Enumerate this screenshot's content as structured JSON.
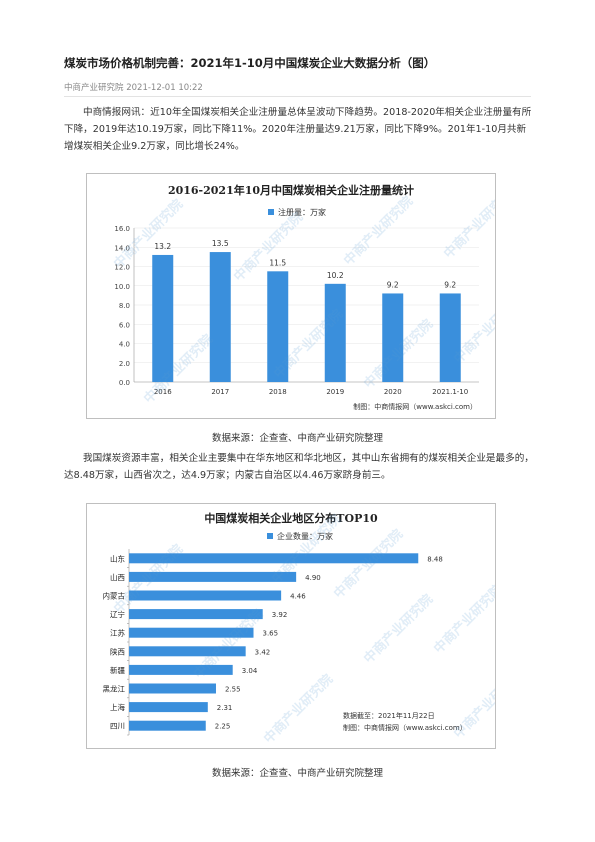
{
  "article": {
    "title": "煤炭市场价格机制完善：2021年1-10月中国煤炭企业大数据分析（图）",
    "source": "中商产业研究院",
    "date": "2021-12-01 10:22",
    "paragraph1": "中商情报网讯：近10年全国煤炭相关企业注册量总体呈波动下降趋势。2018-2020年相关企业注册量有所下降，2019年达10.19万家，同比下降11%。2020年注册量达9.21万家，同比下降9%。201年1-10月共新增煤炭相关企业9.2万家，同比增长24%。",
    "caption1": "数据来源：企查查、中商产业研究院整理",
    "paragraph2": "我国煤炭资源丰富，相关企业主要集中在华东地区和华北地区，其中山东省拥有的煤炭相关企业是最多的，达8.48万家，山西省次之，达4.9万家；内蒙古自治区以4.46万家跻身前三。",
    "caption2": "数据来源：企查查、中商产业研究院整理"
  },
  "watermark": "中商产业研究院",
  "chart_data": [
    {
      "type": "bar",
      "title": "2016-2021年10月中国煤炭相关企业注册量统计",
      "legend": "注册量：万家",
      "categories": [
        "2016",
        "2017",
        "2018",
        "2019",
        "2020",
        "2021.1-10"
      ],
      "values": [
        13.2,
        13.5,
        11.5,
        10.2,
        9.2,
        9.2
      ],
      "value_labels": [
        "13.2",
        "13.5",
        "11.5",
        "10.2",
        "9.2",
        "9.2"
      ],
      "ylim": [
        0,
        16
      ],
      "yticks": [
        "0.0",
        "2.0",
        "4.0",
        "6.0",
        "8.0",
        "10.0",
        "12.0",
        "14.0",
        "16.0"
      ],
      "grid": true,
      "legend_position": "top-left",
      "source_note": "制图：中商情报网（www.askci.com）",
      "color": "#3a8fdc"
    },
    {
      "type": "bar",
      "orientation": "horizontal",
      "title": "中国煤炭相关企业地区分布TOP10",
      "legend": "企业数量：万家",
      "categories": [
        "山东",
        "山西",
        "内蒙古",
        "辽宁",
        "江苏",
        "陕西",
        "新疆",
        "黑龙江",
        "上海",
        "四川"
      ],
      "values": [
        8.48,
        4.9,
        4.46,
        3.92,
        3.65,
        3.42,
        3.04,
        2.55,
        2.31,
        2.25
      ],
      "value_labels": [
        "8.48",
        "4.90",
        "4.46",
        "3.92",
        "3.65",
        "3.42",
        "3.04",
        "2.55",
        "2.31",
        "2.25"
      ],
      "xlim": [
        0,
        9
      ],
      "legend_position": "top",
      "note_date": "数据截至：2021年11月22日",
      "source_note": "制图：中商情报网（www.askci.com）",
      "color": "#3a8fdc"
    }
  ]
}
